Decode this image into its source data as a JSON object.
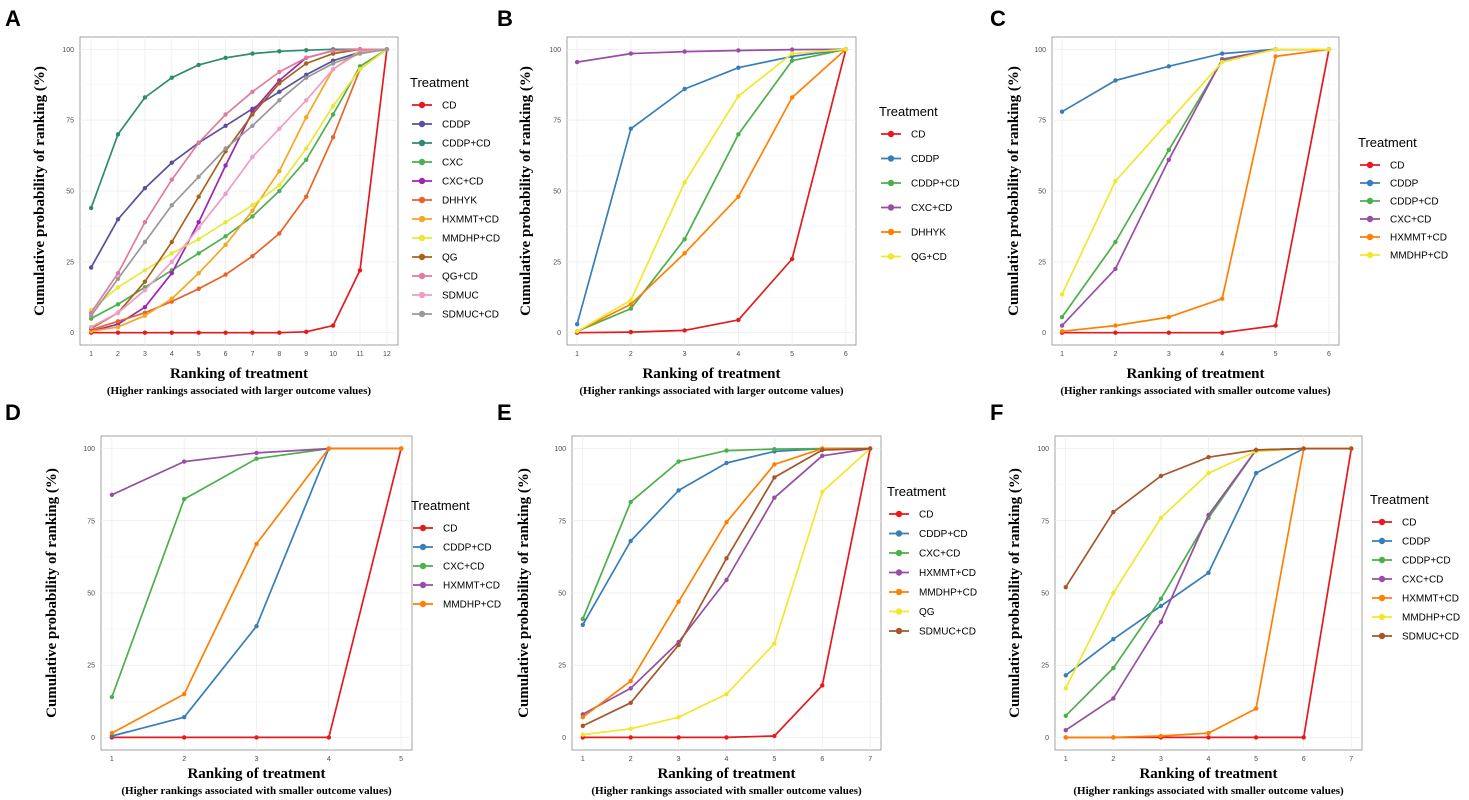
{
  "figure": {
    "ylabel": "Cumulative probability of ranking (%)",
    "xlabel": "Ranking of treatment",
    "legend_title": "Treatment"
  },
  "chart_data": [
    {
      "panel": "A",
      "type": "line",
      "title": "",
      "xlabel": "Ranking of treatment",
      "subtitle": "(Higher rankings associated with larger outcome values)",
      "ylabel": "Cumulative probability of ranking (%)",
      "legend_title": "Treatment",
      "x": [
        1,
        2,
        3,
        4,
        5,
        6,
        7,
        8,
        9,
        10,
        11,
        12
      ],
      "ylim": [
        0,
        100
      ],
      "yticks": [
        0,
        25,
        50,
        75,
        100
      ],
      "series": [
        {
          "name": "CD",
          "color": "#E41A1C",
          "values": [
            0,
            0,
            0,
            0,
            0,
            0,
            0,
            0,
            0.3,
            2.5,
            22,
            100
          ]
        },
        {
          "name": "CDDP",
          "color": "#5B4E9A",
          "values": [
            23,
            40,
            51,
            60,
            67,
            73,
            79,
            85,
            91,
            96,
            99,
            100
          ]
        },
        {
          "name": "CDDP+CD",
          "color": "#2E8B72",
          "values": [
            44,
            70,
            83,
            90,
            94.5,
            97,
            98.5,
            99.3,
            99.7,
            100,
            100,
            100
          ]
        },
        {
          "name": "CXC",
          "color": "#4CAF50",
          "values": [
            5,
            10,
            16,
            22,
            28,
            34,
            41,
            50,
            61,
            77,
            94,
            100
          ]
        },
        {
          "name": "CXC+CD",
          "color": "#9C27B0",
          "values": [
            0.5,
            3,
            9,
            21,
            39,
            59,
            78,
            89,
            97,
            99.5,
            100,
            100
          ]
        },
        {
          "name": "DHHYK",
          "color": "#E8622A",
          "values": [
            1,
            4,
            7,
            11,
            15.5,
            20.5,
            27,
            35,
            48,
            69,
            93,
            100
          ]
        },
        {
          "name": "HXMMT+CD",
          "color": "#F5A623",
          "values": [
            0.5,
            2,
            6,
            12,
            21,
            31,
            43,
            57,
            76,
            93,
            99.5,
            100
          ]
        },
        {
          "name": "MMDHP+CD",
          "color": "#E8E83A",
          "values": [
            8,
            16,
            22,
            28,
            33,
            39,
            45,
            52,
            65,
            80,
            93,
            100
          ]
        },
        {
          "name": "QG",
          "color": "#A6631C",
          "values": [
            1.5,
            7,
            18,
            32,
            48,
            64,
            77,
            88,
            95,
            98.5,
            100,
            100
          ]
        },
        {
          "name": "QG+CD",
          "color": "#E07AA0",
          "values": [
            7,
            21,
            39,
            54,
            67,
            77,
            85,
            92,
            97,
            99.5,
            100,
            100
          ]
        },
        {
          "name": "SDMUC",
          "color": "#F09CC6",
          "values": [
            2,
            7,
            15,
            25,
            37,
            49,
            62,
            72,
            82,
            93,
            99,
            100
          ]
        },
        {
          "name": "SDMUC+CD",
          "color": "#999999",
          "values": [
            6,
            19,
            32,
            45,
            55,
            65,
            73,
            82,
            90,
            95,
            98.5,
            100
          ]
        }
      ]
    },
    {
      "panel": "B",
      "type": "line",
      "title": "",
      "xlabel": "Ranking of treatment",
      "subtitle": "(Higher rankings associated with larger outcome values)",
      "ylabel": "Cumulative probability of ranking (%)",
      "legend_title": "Treatment",
      "x": [
        1,
        2,
        3,
        4,
        5,
        6
      ],
      "ylim": [
        0,
        100
      ],
      "yticks": [
        0,
        25,
        50,
        75,
        100
      ],
      "series": [
        {
          "name": "CD",
          "color": "#E41A1C",
          "values": [
            0,
            0.2,
            0.8,
            4.5,
            26,
            100
          ]
        },
        {
          "name": "CDDP",
          "color": "#377EB8",
          "values": [
            3,
            72,
            86,
            93.5,
            97.5,
            100
          ]
        },
        {
          "name": "CDDP+CD",
          "color": "#4DAF4A",
          "values": [
            0.5,
            8.5,
            33,
            70,
            96,
            100
          ]
        },
        {
          "name": "CXC+CD",
          "color": "#984EA3",
          "values": [
            95.5,
            98.5,
            99.2,
            99.6,
            99.9,
            100
          ]
        },
        {
          "name": "DHHYK",
          "color": "#FF7F00",
          "values": [
            0.5,
            10,
            28,
            48,
            83,
            100
          ]
        },
        {
          "name": "QG+CD",
          "color": "#F2E72C",
          "values": [
            0.5,
            11.5,
            53,
            83.5,
            98.5,
            100
          ]
        }
      ]
    },
    {
      "panel": "C",
      "type": "line",
      "title": "",
      "xlabel": "Ranking of treatment",
      "subtitle": "(Higher rankings associated with smaller outcome values)",
      "ylabel": "Cumulative probability of ranking (%)",
      "legend_title": "Treatment",
      "x": [
        1,
        2,
        3,
        4,
        5,
        6
      ],
      "ylim": [
        0,
        100
      ],
      "yticks": [
        0,
        25,
        50,
        75,
        100
      ],
      "series": [
        {
          "name": "CD",
          "color": "#E41A1C",
          "values": [
            0,
            0,
            0,
            0,
            2.5,
            100
          ]
        },
        {
          "name": "CDDP",
          "color": "#377EB8",
          "values": [
            78,
            89,
            94,
            98.5,
            100,
            100
          ]
        },
        {
          "name": "CDDP+CD",
          "color": "#4DAF4A",
          "values": [
            5.5,
            32,
            64.5,
            96,
            100,
            100
          ]
        },
        {
          "name": "CXC+CD",
          "color": "#984EA3",
          "values": [
            2.5,
            22.5,
            61,
            96.5,
            100,
            100
          ]
        },
        {
          "name": "HXMMT+CD",
          "color": "#FF7F00",
          "values": [
            0.5,
            2.5,
            5.5,
            12,
            97.5,
            100
          ]
        },
        {
          "name": "MMDHP+CD",
          "color": "#F2E72C",
          "values": [
            13.5,
            53.5,
            74.5,
            95.5,
            100,
            100
          ]
        }
      ]
    },
    {
      "panel": "D",
      "type": "line",
      "title": "",
      "xlabel": "Ranking of treatment",
      "subtitle": "(Higher rankings associated with smaller outcome values)",
      "ylabel": "Cumulative probability of ranking (%)",
      "legend_title": "Treatment",
      "x": [
        1,
        2,
        3,
        4,
        5
      ],
      "ylim": [
        0,
        100
      ],
      "yticks": [
        0,
        25,
        50,
        75,
        100
      ],
      "series": [
        {
          "name": "CD",
          "color": "#E41A1C",
          "values": [
            0,
            0,
            0,
            0,
            100
          ]
        },
        {
          "name": "CDDP+CD",
          "color": "#377EB8",
          "values": [
            0.5,
            7,
            38.5,
            100,
            100
          ]
        },
        {
          "name": "CXC+CD",
          "color": "#4DAF4A",
          "values": [
            14,
            82.5,
            96.5,
            100,
            100
          ]
        },
        {
          "name": "HXMMT+CD",
          "color": "#984EA3",
          "values": [
            84,
            95.5,
            98.5,
            100,
            100
          ]
        },
        {
          "name": "MMDHP+CD",
          "color": "#FF7F00",
          "values": [
            1.5,
            15,
            67,
            100,
            100
          ]
        }
      ]
    },
    {
      "panel": "E",
      "type": "line",
      "title": "",
      "xlabel": "Ranking of treatment",
      "subtitle": "(Higher rankings associated with smaller outcome values)",
      "ylabel": "Cumulative probability of ranking (%)",
      "legend_title": "Treatment",
      "x": [
        1,
        2,
        3,
        4,
        5,
        6,
        7
      ],
      "ylim": [
        0,
        100
      ],
      "yticks": [
        0,
        25,
        50,
        75,
        100
      ],
      "series": [
        {
          "name": "CD",
          "color": "#E41A1C",
          "values": [
            0,
            0,
            0,
            0,
            0.5,
            18,
            100
          ]
        },
        {
          "name": "CDDP+CD",
          "color": "#377EB8",
          "values": [
            39,
            68,
            85.5,
            95,
            99,
            100,
            100
          ]
        },
        {
          "name": "CXC+CD",
          "color": "#4DAF4A",
          "values": [
            41,
            81.5,
            95.5,
            99.3,
            99.8,
            100,
            100
          ]
        },
        {
          "name": "HXMMT+CD",
          "color": "#984EA3",
          "values": [
            8,
            17,
            33,
            54.5,
            83,
            97.5,
            100
          ]
        },
        {
          "name": "MMDHP+CD",
          "color": "#FF7F00",
          "values": [
            7,
            19.5,
            47,
            74.5,
            94.5,
            100,
            100
          ]
        },
        {
          "name": "QG",
          "color": "#F2E72C",
          "values": [
            1,
            3,
            7,
            15,
            32.5,
            85,
            100
          ]
        },
        {
          "name": "SDMUC+CD",
          "color": "#A65628",
          "values": [
            4,
            12,
            32,
            62,
            90,
            99.5,
            100
          ]
        }
      ]
    },
    {
      "panel": "F",
      "type": "line",
      "title": "",
      "xlabel": "Ranking of treatment",
      "subtitle": "(Higher rankings associated with smaller outcome values)",
      "ylabel": "Cumulative probability of ranking (%)",
      "legend_title": "Treatment",
      "x": [
        1,
        2,
        3,
        4,
        5,
        6,
        7
      ],
      "ylim": [
        0,
        100
      ],
      "yticks": [
        0,
        25,
        50,
        75,
        100
      ],
      "series": [
        {
          "name": "CD",
          "color": "#E41A1C",
          "values": [
            0,
            0,
            0,
            0,
            0,
            0,
            100
          ]
        },
        {
          "name": "CDDP",
          "color": "#377EB8",
          "values": [
            21.5,
            34,
            45.5,
            57,
            91.5,
            100,
            100
          ]
        },
        {
          "name": "CDDP+CD",
          "color": "#4DAF4A",
          "values": [
            7.5,
            24,
            48,
            76,
            99.5,
            100,
            100
          ]
        },
        {
          "name": "CXC+CD",
          "color": "#984EA3",
          "values": [
            2.5,
            13.5,
            40,
            77,
            99.5,
            100,
            100
          ]
        },
        {
          "name": "HXMMT+CD",
          "color": "#FF7F00",
          "values": [
            0,
            0,
            0.5,
            1.5,
            10,
            100,
            100
          ]
        },
        {
          "name": "MMDHP+CD",
          "color": "#F2E72C",
          "values": [
            17,
            50,
            76,
            91.5,
            99,
            100,
            100
          ]
        },
        {
          "name": "SDMUC+CD",
          "color": "#A65628",
          "values": [
            52,
            78,
            90.5,
            97,
            99.5,
            100,
            100
          ]
        }
      ]
    }
  ]
}
